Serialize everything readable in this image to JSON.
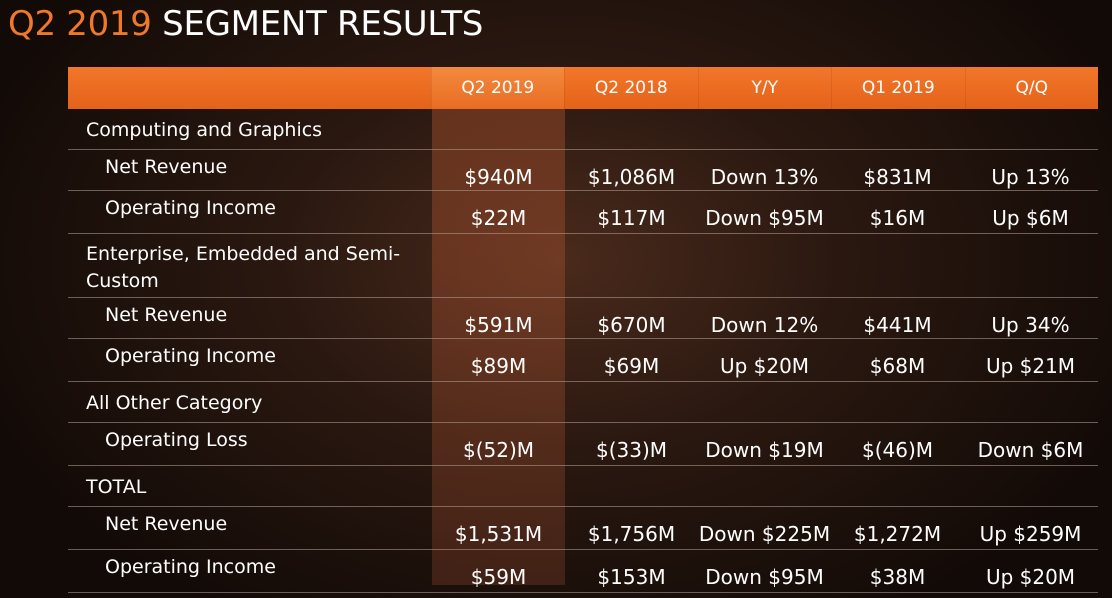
{
  "title": {
    "accent": "Q2 2019",
    "main": "SEGMENT RESULTS"
  },
  "columns": [
    "Q2 2019",
    "Q2 2018",
    "Y/Y",
    "Q1 2019",
    "Q/Q"
  ],
  "sections": [
    {
      "label": "Computing and Graphics",
      "rows": [
        {
          "label": "Net Revenue",
          "values": [
            "$940M",
            "$1,086M",
            "Down 13%",
            "$831M",
            "Up 13%"
          ]
        },
        {
          "label": "Operating Income",
          "values": [
            "$22M",
            "$117M",
            "Down $95M",
            "$16M",
            "Up $6M"
          ]
        }
      ]
    },
    {
      "label": "Enterprise, Embedded and Semi-Custom",
      "rows": [
        {
          "label": "Net Revenue",
          "values": [
            "$591M",
            "$670M",
            "Down 12%",
            "$441M",
            "Up 34%"
          ]
        },
        {
          "label": "Operating Income",
          "values": [
            "$89M",
            "$69M",
            "Up $20M",
            "$68M",
            "Up $21M"
          ]
        }
      ]
    },
    {
      "label": "All Other Category",
      "rows": [
        {
          "label": "Operating Loss",
          "values": [
            "$(52)M",
            "$(33)M",
            "Down $19M",
            "$(46)M",
            "Down $6M"
          ]
        }
      ]
    },
    {
      "label": "TOTAL",
      "rows": [
        {
          "label": "Net Revenue",
          "values": [
            "$1,531M",
            "$1,756M",
            "Down $225M",
            "$1,272M",
            "Up $259M"
          ]
        },
        {
          "label": "Operating Income",
          "values": [
            "$59M",
            "$153M",
            "Down $95M",
            "$38M",
            "Up $20M"
          ]
        }
      ]
    }
  ]
}
